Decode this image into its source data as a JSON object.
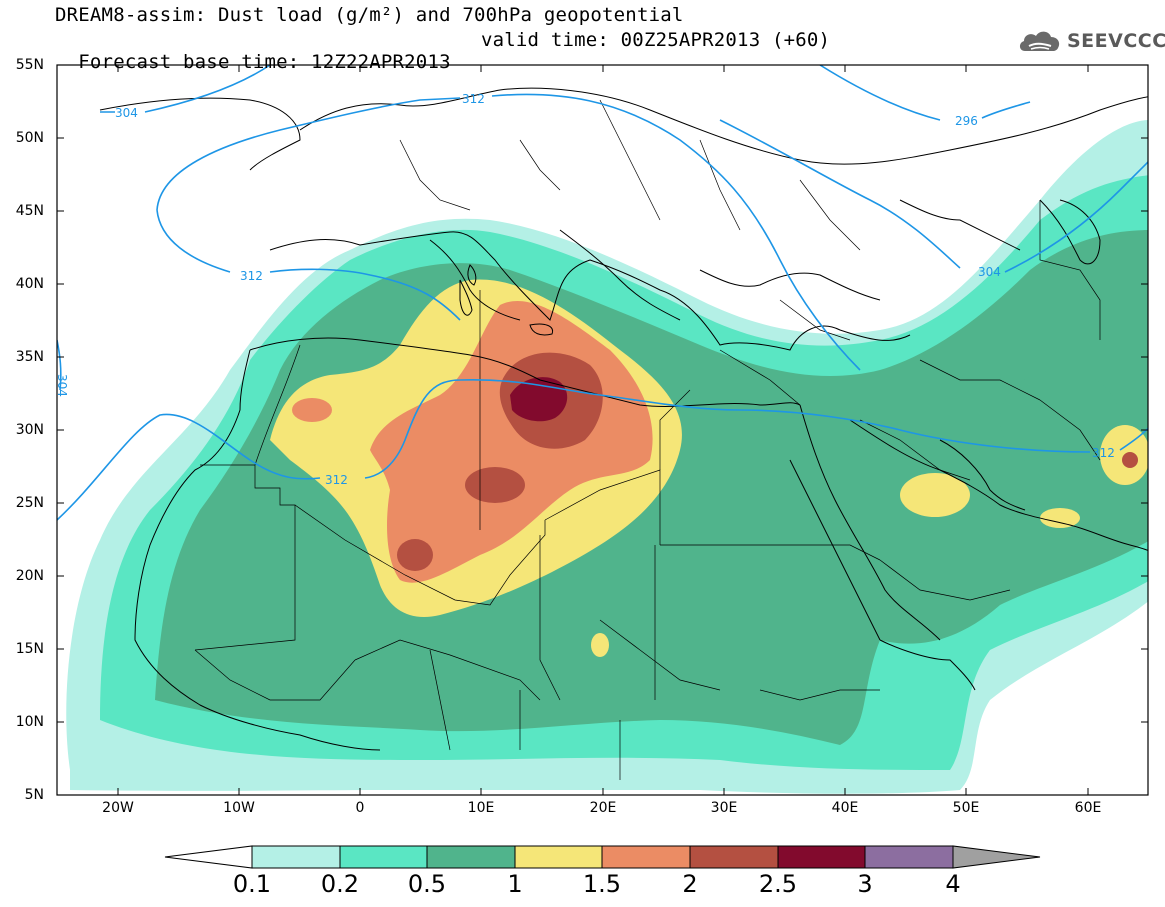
{
  "title": {
    "line1": "DREAM8-assim: Dust load (g/m²) and 700hPa geopotential",
    "line2_base": "Forecast base time: 12Z22APR2013",
    "line2_valid": "valid time: 00Z25APR2013 (+60)"
  },
  "logo": {
    "text": "SEEVCCC",
    "icon": "cloud-icon"
  },
  "axes": {
    "lat_labels": [
      "55N",
      "50N",
      "45N",
      "40N",
      "35N",
      "30N",
      "25N",
      "20N",
      "15N",
      "10N",
      "5N"
    ],
    "lon_labels": [
      "20W",
      "10W",
      "0",
      "10E",
      "20E",
      "30E",
      "40E",
      "50E",
      "60E"
    ]
  },
  "contours": {
    "labels": [
      "304",
      "312",
      "312",
      "312",
      "296",
      "304",
      "312",
      "304"
    ],
    "color": "#1e96e6"
  },
  "colorbar": {
    "labels": [
      "0.1",
      "0.2",
      "0.5",
      "1",
      "1.5",
      "2",
      "2.5",
      "3",
      "4"
    ],
    "colors": [
      "#b4f0e6",
      "#5ae6c3",
      "#50b48c",
      "#f5e678",
      "#eb8c64",
      "#b45041",
      "#820a2d",
      "#8c6ea0",
      "#a0a0a0"
    ]
  },
  "dust_colors": {
    "c01": "#b4f0e6",
    "c02": "#5ae6c3",
    "c05": "#50b48c",
    "c10": "#f5e678",
    "c15": "#eb8c64",
    "c20": "#b45041",
    "c25": "#820a2d"
  }
}
